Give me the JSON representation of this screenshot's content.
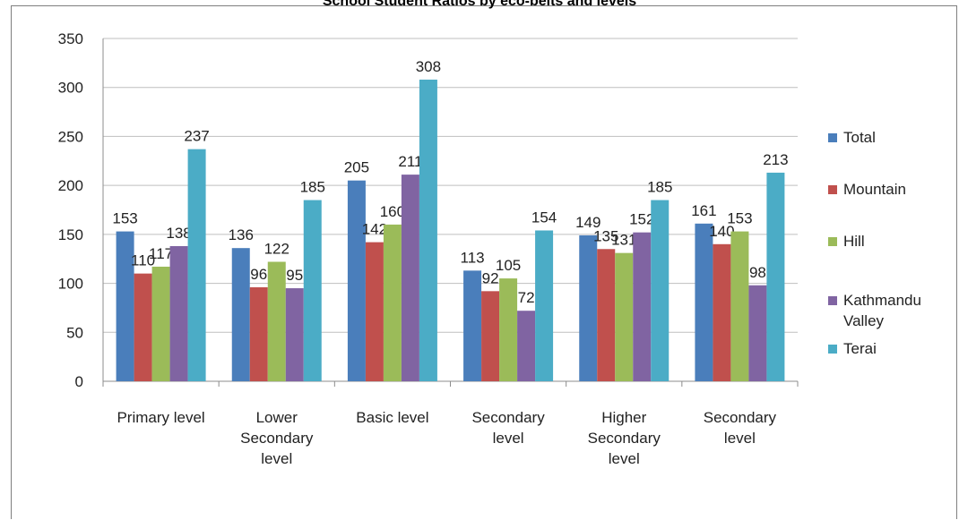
{
  "chart_data": {
    "type": "bar",
    "title": "School Student Ratios by eco-belts and levels",
    "categories": [
      [
        "Primary level"
      ],
      [
        "Lower",
        "Secondary",
        "level"
      ],
      [
        "Basic level"
      ],
      [
        "Secondary",
        "level"
      ],
      [
        "Higher",
        "Secondary",
        "level"
      ],
      [
        "Secondary",
        "level"
      ]
    ],
    "series": [
      {
        "name": [
          "Total"
        ],
        "color": "#4a7ebb",
        "values": [
          153,
          136,
          205,
          113,
          149,
          161
        ]
      },
      {
        "name": [
          "Mountain"
        ],
        "color": "#c0504d",
        "values": [
          110,
          96,
          142,
          92,
          135,
          140
        ]
      },
      {
        "name": [
          "Hill"
        ],
        "color": "#9bbb59",
        "values": [
          117,
          122,
          160,
          105,
          131,
          153
        ]
      },
      {
        "name": [
          "Kathmandu",
          "Valley"
        ],
        "color": "#8064a2",
        "values": [
          138,
          95,
          211,
          72,
          152,
          98
        ]
      },
      {
        "name": [
          "Terai"
        ],
        "color": "#4bacc6",
        "values": [
          237,
          185,
          308,
          154,
          185,
          213
        ]
      }
    ],
    "ylim": [
      0,
      350
    ],
    "yticks": [
      0,
      50,
      100,
      150,
      200,
      250,
      300,
      350
    ],
    "grid": true,
    "legend": "right"
  }
}
